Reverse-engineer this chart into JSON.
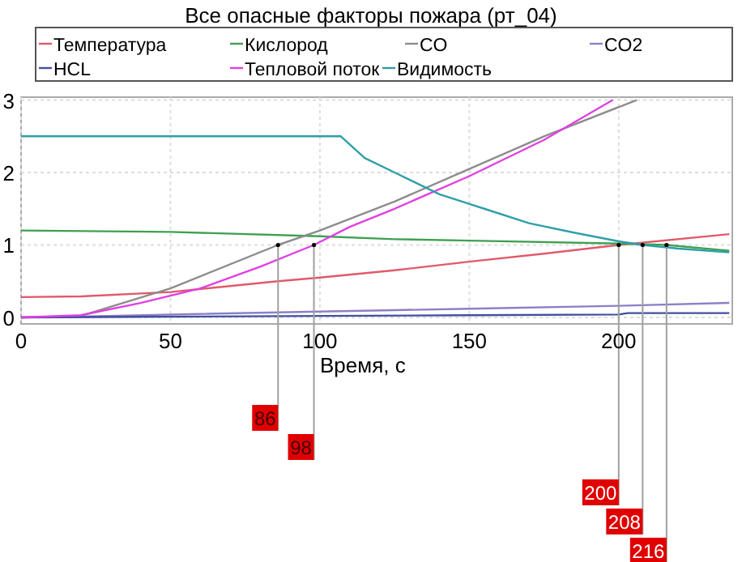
{
  "chart_data": {
    "type": "line",
    "title": "Все опасные факторы пожара (рт_04)",
    "xlabel": "Время, с",
    "xlim": [
      0,
      238
    ],
    "xticks": [
      0,
      50,
      100,
      150,
      200
    ],
    "ylim": [
      -0.09,
      3.04
    ],
    "yticks": [
      0,
      1,
      2,
      3
    ],
    "grid": true,
    "legend": "top",
    "marker": "none",
    "line_style": "solid",
    "series": [
      {
        "name": "Температура",
        "color": "#e05a6a",
        "x": [
          0,
          20,
          50,
          86,
          100,
          125,
          150,
          175,
          200,
          237
        ],
        "values": [
          0.28,
          0.29,
          0.35,
          0.5,
          0.55,
          0.65,
          0.77,
          0.88,
          1.0,
          1.15
        ]
      },
      {
        "name": "Кислород",
        "color": "#3fa050",
        "x": [
          0,
          50,
          100,
          125,
          150,
          200,
          216,
          237
        ],
        "values": [
          1.2,
          1.18,
          1.12,
          1.08,
          1.06,
          1.02,
          1.0,
          0.92
        ]
      },
      {
        "name": "CO",
        "color": "#8c8c8c",
        "x": [
          0,
          20,
          50,
          86,
          100,
          125,
          150,
          175,
          206
        ],
        "values": [
          0,
          0.02,
          0.4,
          1.0,
          1.2,
          1.6,
          2.05,
          2.5,
          3.0
        ]
      },
      {
        "name": "CO2",
        "color": "#8a80c8",
        "x": [
          0,
          20,
          50,
          100,
          125,
          150,
          200,
          237
        ],
        "values": [
          0,
          0.01,
          0.04,
          0.08,
          0.1,
          0.12,
          0.16,
          0.2
        ]
      },
      {
        "name": "HCL",
        "color": "#4050a0",
        "x": [
          0,
          50,
          100,
          150,
          200,
          203,
          237
        ],
        "values": [
          0,
          0.01,
          0.02,
          0.03,
          0.04,
          0.06,
          0.06
        ]
      },
      {
        "name": "Тепловой поток",
        "color": "#e040e0",
        "x": [
          0,
          20,
          40,
          60,
          80,
          98,
          110,
          125,
          150,
          175,
          198
        ],
        "values": [
          0,
          0.03,
          0.2,
          0.4,
          0.7,
          1.0,
          1.25,
          1.5,
          1.95,
          2.45,
          3.0
        ]
      },
      {
        "name": "Видимость",
        "color": "#2f9fa8",
        "x": [
          0,
          107,
          115,
          125,
          140,
          155,
          170,
          185,
          200,
          208,
          220,
          237
        ],
        "values": [
          2.5,
          2.5,
          2.2,
          2.0,
          1.7,
          1.5,
          1.3,
          1.17,
          1.05,
          1.0,
          0.95,
          0.9
        ]
      }
    ],
    "ref_lines": [
      {
        "axis": "x",
        "value": 86,
        "label": "86",
        "color": "#a0a0a0"
      },
      {
        "axis": "x",
        "value": 98,
        "label": "98",
        "color": "#a0a0a0"
      },
      {
        "axis": "x",
        "value": 200,
        "label": "200",
        "color": "#a0a0a0"
      },
      {
        "axis": "x",
        "value": 208,
        "label": "208",
        "color": "#a0a0a0"
      },
      {
        "axis": "x",
        "value": 216,
        "label": "216",
        "color": "#a0a0a0"
      }
    ]
  }
}
